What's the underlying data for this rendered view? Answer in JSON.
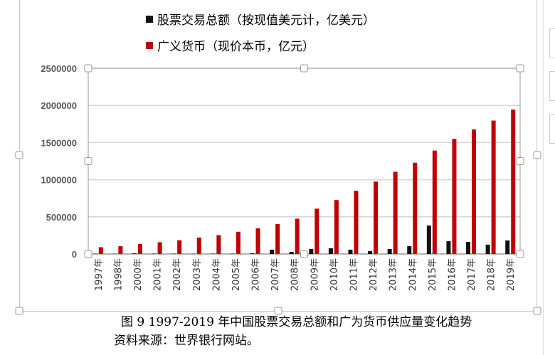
{
  "chart_data": {
    "type": "bar",
    "categories": [
      "1997年",
      "1998年",
      "2000年",
      "2001年",
      "2002年",
      "2003年",
      "2004年",
      "2005年",
      "2006年",
      "2007年",
      "2008年",
      "2009年",
      "2010年",
      "2011年",
      "2012年",
      "2013年",
      "2014年",
      "2015年",
      "2016年",
      "2017年",
      "2018年",
      "2019年"
    ],
    "series": [
      {
        "name": "股票交易总额（按现值美元计，亿美元）",
        "color": "#111111",
        "values": [
          3000,
          2800,
          8000,
          4600,
          3400,
          3300,
          4400,
          3900,
          9000,
          58000,
          29000,
          67000,
          77000,
          58000,
          38000,
          67000,
          105000,
          383000,
          172000,
          163000,
          125000,
          182000
        ]
      },
      {
        "name": "广义货币（现价本币，亿元）",
        "color": "#c00000",
        "values": [
          90995,
          104499,
          134610,
          158302,
          185007,
          221223,
          254107,
          298756,
          345578,
          403442,
          475167,
          610225,
          725852,
          851591,
          974149,
          1106525,
          1228375,
          1392278,
          1550067,
          1676769,
          1796000,
          1945000
        ]
      }
    ],
    "yticks": [
      "0",
      "500000",
      "1000000",
      "1500000",
      "2000000",
      "2500000"
    ],
    "ylim": [
      0,
      2500000
    ],
    "grid": true,
    "legend": "top"
  },
  "caption": {
    "figure": "图 9   1997-2019 年中国股票交易总额和广为货币供应量变化趋势",
    "source": "资料来源：世界银行网站。"
  }
}
